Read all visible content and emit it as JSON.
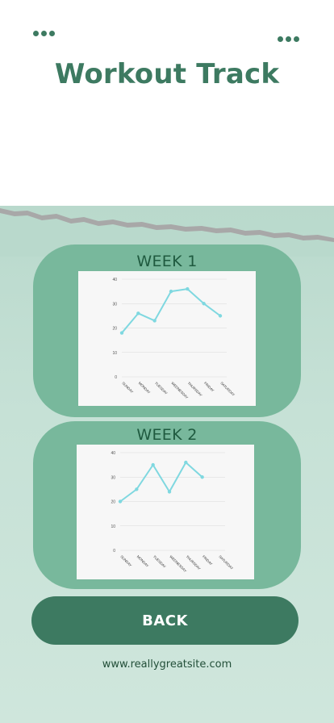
{
  "header": {
    "title": "Workout Track",
    "left_menu_icon": "more-dots-icon",
    "right_menu_icon": "more-dots-icon"
  },
  "colors": {
    "accent": "#3d7a61",
    "card": "#78b89c",
    "line": "#7fd8e0",
    "background": "#c6e1d6"
  },
  "weeks": [
    {
      "label": "WEEK 1",
      "chart_data": {
        "type": "line",
        "categories": [
          "SUNDAY",
          "MONDAY",
          "TUESDAY",
          "WEDNESDAY",
          "THURSDAY",
          "FRIDAY",
          "SATURDAY"
        ],
        "values": [
          18,
          26,
          23,
          35,
          36,
          30,
          25
        ],
        "ylim": [
          0,
          40
        ],
        "yticks": [
          "0",
          "10",
          "20",
          "30",
          "40"
        ],
        "grid": true
      }
    },
    {
      "label": "WEEK 2",
      "chart_data": {
        "type": "line",
        "categories": [
          "SUNDAY",
          "MONDAY",
          "TUESDAY",
          "WEDNESDAY",
          "THURSDAY",
          "FRIDAY",
          "SATURDAY"
        ],
        "values": [
          20,
          25,
          35,
          24,
          36,
          30,
          null
        ],
        "ylim": [
          0,
          40
        ],
        "yticks": [
          "0",
          "10",
          "20",
          "30",
          "40"
        ],
        "grid": true
      }
    }
  ],
  "back_button": {
    "label": "BACK"
  },
  "footer": {
    "website": "www.reallygreatsite.com"
  }
}
